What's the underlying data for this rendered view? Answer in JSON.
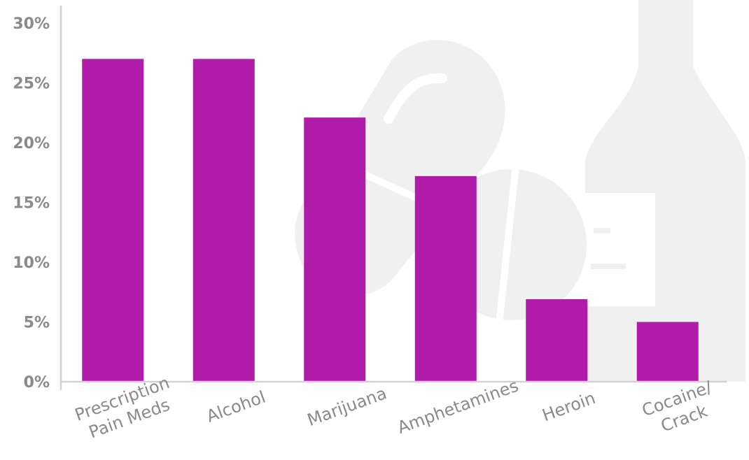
{
  "chart_data": {
    "type": "bar",
    "title": "",
    "xlabel": "",
    "ylabel": "",
    "categories": [
      [
        "Prescription",
        "Pain Meds"
      ],
      [
        "Alcohol"
      ],
      [
        "Marijuana"
      ],
      [
        "Amphetamines"
      ],
      [
        "Heroin"
      ],
      [
        "Cocaine/",
        "Crack"
      ]
    ],
    "values": [
      27,
      27,
      22.1,
      17.2,
      6.9,
      5
    ],
    "ylim": [
      0,
      30
    ],
    "yticks": [
      0,
      5,
      10,
      15,
      20,
      25,
      30
    ],
    "ytick_labels": [
      "0%",
      "5%",
      "10%",
      "15%",
      "20%",
      "25%",
      "30%"
    ],
    "grid": false,
    "legend": "none",
    "bar_color": "#b01ba9",
    "axis_color": "#d2d2d2",
    "tick_color": "#8a8a8c",
    "background_art": [
      "pill-capsule-icon",
      "tablet-icon",
      "bottle-icon"
    ]
  }
}
